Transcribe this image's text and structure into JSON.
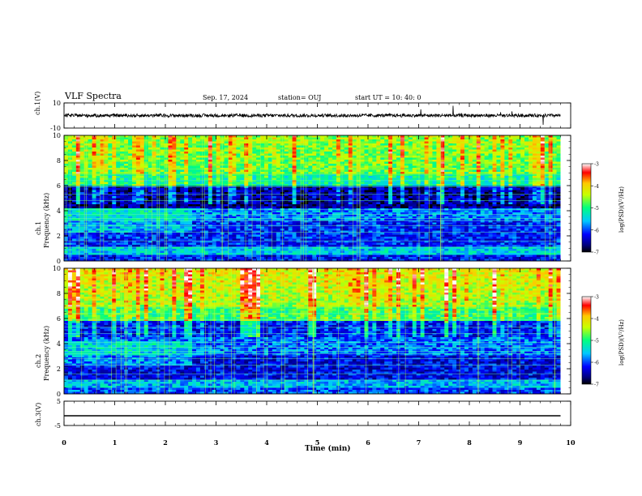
{
  "header": {
    "title": "VLF Spectra",
    "date": "Sep. 17, 2024",
    "station": "station= OUJ",
    "start": "start  UT =   10: 40: 0"
  },
  "chart_data": [
    {
      "type": "line",
      "name": "ch1-waveform",
      "ylabel": "ch.1(V)",
      "ylim": [
        -10,
        10
      ],
      "yticks": [
        "10",
        "-10"
      ],
      "xlim": [
        0,
        10
      ],
      "x_extent": [
        0,
        9.8
      ],
      "baseline": 0,
      "color": "#000000",
      "note_noise_amplitude": 0.6
    },
    {
      "type": "heatmap",
      "name": "ch1-spectrogram",
      "ylabel": "ch.1\nFrequency (kHz)",
      "ylabel_lines": [
        "ch.1",
        "Frequency (kHz)"
      ],
      "ylim": [
        0,
        10
      ],
      "yticks": [
        "0",
        "2",
        "4",
        "6",
        "8",
        "10"
      ],
      "xlim": [
        0,
        10
      ],
      "x_extent": [
        0,
        9.8
      ],
      "colorbar": {
        "label": "log(PSD)(V²/Hz)",
        "range": [
          -7,
          -3
        ],
        "ticks": [
          "-3",
          "-4",
          "-5",
          "-6",
          "-7"
        ]
      }
    },
    {
      "type": "heatmap",
      "name": "ch2-spectrogram",
      "ylabel_lines": [
        "ch.2",
        "Frequency (kHz)"
      ],
      "ylim": [
        0,
        10
      ],
      "yticks": [
        "0",
        "2",
        "4",
        "6",
        "8",
        "10"
      ],
      "xlim": [
        0,
        10
      ],
      "x_extent": [
        0,
        9.8
      ],
      "colorbar": {
        "label": "log(PSD)(V²/Hz)",
        "range": [
          -7,
          -3
        ],
        "ticks": [
          "-3",
          "-4",
          "-5",
          "-6",
          "-7"
        ]
      }
    },
    {
      "type": "line",
      "name": "ch3-waveform",
      "ylabel": "ch.3(V)",
      "ylim": [
        -5,
        5
      ],
      "yticks": [
        "5",
        "-5"
      ],
      "xlim": [
        0,
        10
      ],
      "x_extent": [
        0,
        9.8
      ],
      "baseline": -1,
      "color": "#000000"
    }
  ],
  "xaxis": {
    "label": "Time (min)",
    "ticks": [
      "0",
      "1",
      "2",
      "3",
      "4",
      "5",
      "6",
      "7",
      "8",
      "9",
      "10"
    ]
  }
}
